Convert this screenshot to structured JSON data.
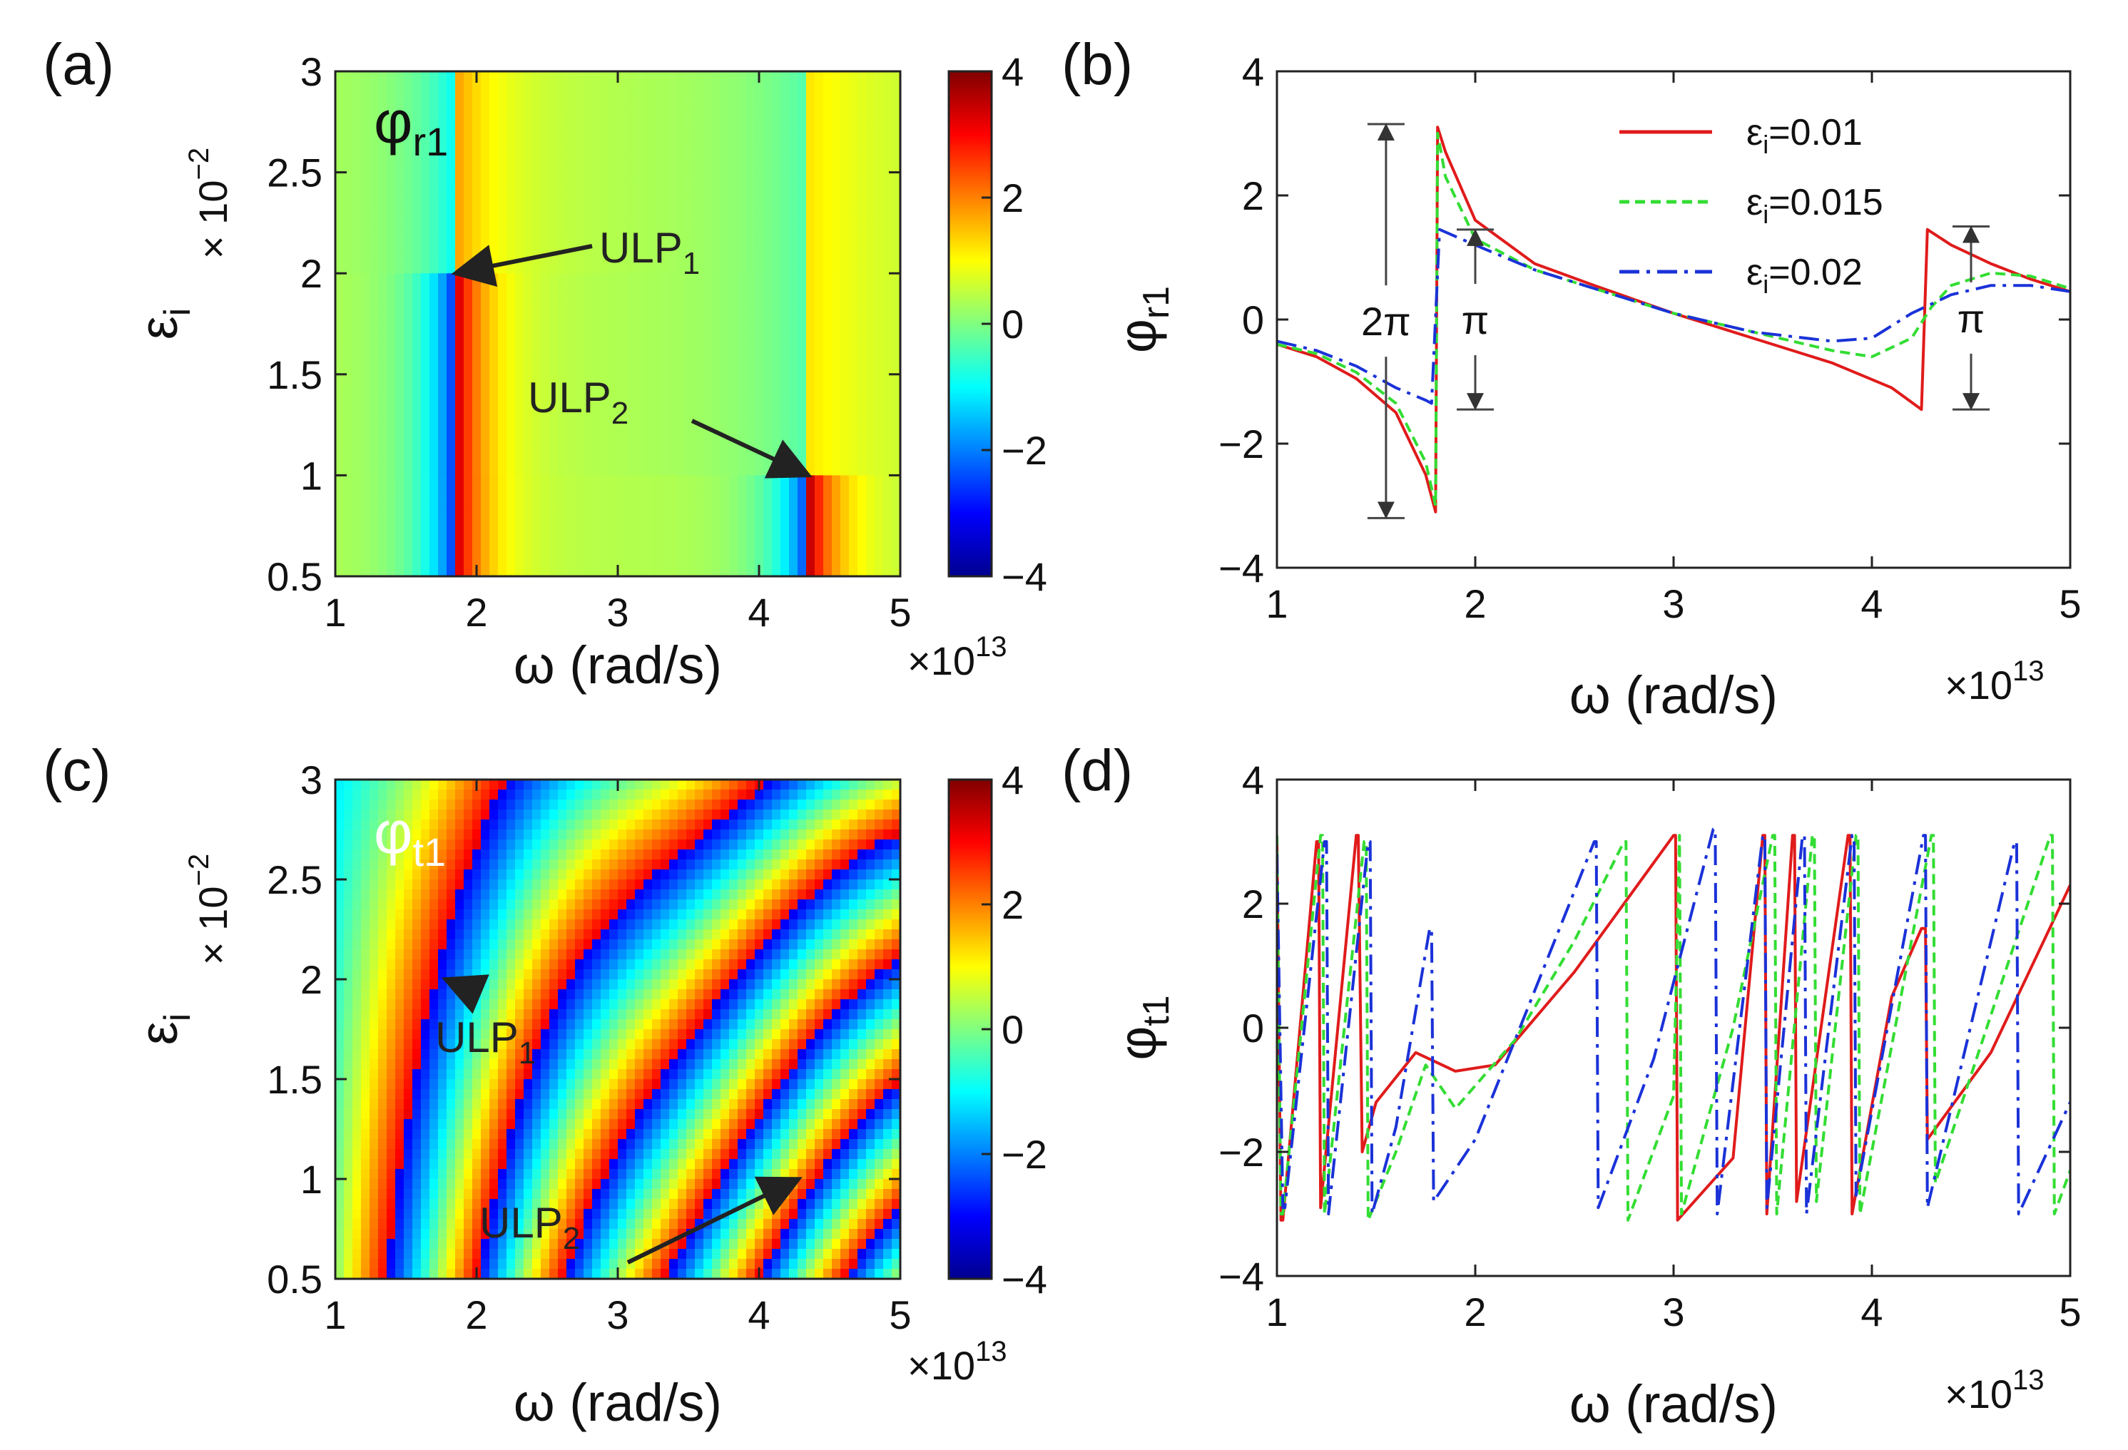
{
  "figure": {
    "x_multiplier": "×10",
    "x_multiplier_exp": "13",
    "y_multiplier": "× 10",
    "y_multiplier_exp": "−2"
  },
  "colormap": {
    "jet": [
      "#00008f",
      "#0000ff",
      "#0080ff",
      "#00ffff",
      "#80ff80",
      "#ffff00",
      "#ff8000",
      "#ff0000",
      "#800000"
    ],
    "background_phase_tint": "#8af088"
  },
  "chart_data": [
    {
      "id": "a",
      "type": "heatmap",
      "panel_label": "(a)",
      "title": "φ",
      "title_sub": "r1",
      "xlabel": "ω (rad/s)",
      "ylabel": "ε",
      "ylabel_sub": "i",
      "xlim": [
        1,
        5
      ],
      "ylim": [
        0.5,
        3
      ],
      "xticks": [
        "1",
        "2",
        "3",
        "4",
        "5"
      ],
      "yticks": [
        "0.5",
        "1",
        "1.5",
        "2",
        "2.5",
        "3"
      ],
      "colorbar": {
        "range": [
          -4,
          4
        ],
        "ticks": [
          "4",
          "2",
          "0",
          "−2",
          "−4"
        ]
      },
      "phase_jumps": [
        {
          "omega": 1.85,
          "eps_top": 2.0
        },
        {
          "omega": 4.35,
          "eps_top": 1.0
        }
      ],
      "annotations": [
        {
          "label": "ULP",
          "sub": "1",
          "point": [
            1.85,
            2.0
          ]
        },
        {
          "label": "ULP",
          "sub": "2",
          "point": [
            4.35,
            1.0
          ]
        }
      ]
    },
    {
      "id": "b",
      "type": "line",
      "panel_label": "(b)",
      "xlabel": "ω (rad/s)",
      "ylabel": "φ",
      "ylabel_sub": "r1",
      "xlim": [
        1,
        5
      ],
      "ylim": [
        -4,
        4
      ],
      "xticks": [
        "1",
        "2",
        "3",
        "4",
        "5"
      ],
      "yticks": [
        "4",
        "2",
        "0",
        "−2",
        "−4"
      ],
      "legend_position": "top-right",
      "series": [
        {
          "name": "εi=0.01",
          "label_eps": "ε",
          "label_sub": "i",
          "label_val": "=0.01",
          "color": "#e01b1b",
          "dash": "solid",
          "x": [
            1.0,
            1.2,
            1.4,
            1.6,
            1.75,
            1.8,
            1.81,
            1.85,
            2.0,
            2.3,
            2.6,
            3.0,
            3.4,
            3.8,
            4.1,
            4.25,
            4.28,
            4.4,
            4.6,
            4.8,
            5.0
          ],
          "y": [
            -0.4,
            -0.6,
            -0.95,
            -1.5,
            -2.5,
            -3.1,
            3.1,
            2.7,
            1.6,
            0.9,
            0.55,
            0.1,
            -0.3,
            -0.7,
            -1.1,
            -1.45,
            1.45,
            1.2,
            0.9,
            0.65,
            0.45
          ]
        },
        {
          "name": "εi=0.015",
          "label_eps": "ε",
          "label_sub": "i",
          "label_val": "=0.015",
          "color": "#33dd33",
          "dash": "dashed",
          "x": [
            1.0,
            1.2,
            1.4,
            1.6,
            1.75,
            1.8,
            1.81,
            1.85,
            2.0,
            2.3,
            2.6,
            3.0,
            3.4,
            3.8,
            4.0,
            4.2,
            4.3,
            4.4,
            4.6,
            4.8,
            5.0
          ],
          "y": [
            -0.4,
            -0.55,
            -0.85,
            -1.35,
            -2.3,
            -3.0,
            3.0,
            2.3,
            1.3,
            0.8,
            0.5,
            0.1,
            -0.2,
            -0.5,
            -0.6,
            -0.3,
            0.2,
            0.55,
            0.75,
            0.7,
            0.5
          ]
        },
        {
          "name": "εi=0.02",
          "label_eps": "ε",
          "label_sub": "i",
          "label_val": "=0.02",
          "color": "#1a32d8",
          "dash": "dashdot",
          "x": [
            1.0,
            1.2,
            1.4,
            1.6,
            1.75,
            1.78,
            1.82,
            2.0,
            2.3,
            2.6,
            3.0,
            3.4,
            3.8,
            4.0,
            4.2,
            4.4,
            4.6,
            4.8,
            5.0
          ],
          "y": [
            -0.35,
            -0.5,
            -0.75,
            -1.1,
            -1.3,
            -1.35,
            1.45,
            1.2,
            0.8,
            0.5,
            0.1,
            -0.2,
            -0.35,
            -0.3,
            0.1,
            0.4,
            0.55,
            0.55,
            0.45
          ]
        }
      ],
      "annotations": [
        {
          "label": "2π",
          "x": 1.55,
          "y_range": [
            -3.2,
            3.15
          ]
        },
        {
          "label": "π",
          "x": 2.0,
          "y_range": [
            -1.45,
            1.45
          ]
        },
        {
          "label": "π",
          "x": 4.5,
          "y_range": [
            -1.45,
            1.5
          ]
        }
      ]
    },
    {
      "id": "c",
      "type": "heatmap",
      "panel_label": "(c)",
      "title": "φ",
      "title_sub": "t1",
      "xlabel": "ω (rad/s)",
      "ylabel": "ε",
      "ylabel_sub": "i",
      "xlim": [
        1,
        5
      ],
      "ylim": [
        0.5,
        3
      ],
      "xticks": [
        "1",
        "2",
        "3",
        "4",
        "5"
      ],
      "yticks": [
        "0.5",
        "1",
        "1.5",
        "2",
        "2.5",
        "3"
      ],
      "colorbar": {
        "range": [
          -4,
          4
        ],
        "ticks": [
          "4",
          "2",
          "0",
          "−2",
          "−4"
        ]
      },
      "singular_points": [
        {
          "omega": 1.78,
          "eps": 2.0
        },
        {
          "omega": 4.28,
          "eps": 1.0
        }
      ],
      "annotations": [
        {
          "label": "ULP",
          "sub": "1",
          "point": [
            1.78,
            2.0
          ]
        },
        {
          "label": "ULP",
          "sub": "2",
          "point": [
            4.28,
            1.0
          ]
        }
      ]
    },
    {
      "id": "d",
      "type": "line",
      "panel_label": "(d)",
      "xlabel": "ω (rad/s)",
      "ylabel": "φ",
      "ylabel_sub": "t1",
      "xlim": [
        1,
        5
      ],
      "ylim": [
        -4,
        4
      ],
      "xticks": [
        "1",
        "2",
        "3",
        "4",
        "5"
      ],
      "yticks": [
        "4",
        "2",
        "0",
        "−2",
        "−4"
      ],
      "series": [
        {
          "name": "εi=0.01",
          "color": "#e01b1b",
          "dash": "solid",
          "x": [
            1.0,
            1.02,
            1.03,
            1.2,
            1.21,
            1.22,
            1.4,
            1.41,
            1.43,
            1.5,
            1.7,
            1.9,
            2.1,
            2.5,
            3.0,
            3.01,
            3.02,
            3.3,
            3.45,
            3.46,
            3.47,
            3.6,
            3.61,
            3.62,
            3.88,
            3.89,
            3.9,
            4.1,
            4.25,
            4.27,
            4.28,
            4.6,
            5.0
          ],
          "y": [
            3.0,
            -3.1,
            -3.1,
            3.0,
            3.0,
            -2.9,
            3.1,
            3.1,
            -2.0,
            -1.2,
            -0.4,
            -0.7,
            -0.6,
            0.9,
            3.1,
            3.1,
            -3.1,
            -2.1,
            3.1,
            3.1,
            -3.0,
            3.1,
            3.1,
            -2.8,
            3.1,
            3.1,
            -3.0,
            0.5,
            1.6,
            1.6,
            -1.8,
            -0.4,
            2.3
          ]
        },
        {
          "name": "εi=0.015",
          "color": "#33dd33",
          "dash": "dashed",
          "x": [
            1.0,
            1.02,
            1.03,
            1.22,
            1.23,
            1.24,
            1.44,
            1.45,
            1.46,
            1.6,
            1.75,
            1.9,
            2.2,
            2.5,
            2.75,
            2.76,
            2.77,
            3.0,
            3.03,
            3.04,
            3.3,
            3.5,
            3.51,
            3.52,
            3.7,
            3.71,
            3.72,
            3.92,
            3.93,
            3.94,
            4.3,
            4.31,
            4.32,
            4.9,
            4.91,
            4.92,
            5.0
          ],
          "y": [
            3.1,
            -3.0,
            -3.0,
            3.1,
            3.1,
            -3.0,
            3.0,
            3.0,
            -3.1,
            -2.0,
            -0.6,
            -1.3,
            -0.2,
            1.4,
            3.0,
            3.0,
            -3.1,
            -1.1,
            3.1,
            -3.0,
            0.0,
            3.1,
            3.1,
            -3.0,
            3.1,
            3.1,
            -2.8,
            3.1,
            3.1,
            -3.0,
            3.1,
            3.1,
            -2.5,
            3.1,
            3.1,
            -3.0,
            -2.3
          ]
        },
        {
          "name": "εi=0.02",
          "color": "#1a32d8",
          "dash": "dashdot",
          "x": [
            1.0,
            1.03,
            1.04,
            1.24,
            1.25,
            1.26,
            1.46,
            1.47,
            1.48,
            1.6,
            1.77,
            1.78,
            1.79,
            2.0,
            2.3,
            2.6,
            2.61,
            2.62,
            2.9,
            3.2,
            3.21,
            3.22,
            3.45,
            3.46,
            3.47,
            3.65,
            3.66,
            3.67,
            3.9,
            3.91,
            3.92,
            4.26,
            4.27,
            4.28,
            4.72,
            4.73,
            4.74,
            5.0
          ],
          "y": [
            2.8,
            -2.9,
            -2.9,
            3.0,
            3.0,
            -3.0,
            3.0,
            3.0,
            -3.0,
            -1.6,
            1.6,
            1.6,
            -2.8,
            -1.8,
            0.6,
            3.0,
            3.0,
            -2.9,
            -0.5,
            3.2,
            3.2,
            -3.0,
            3.1,
            3.1,
            -2.9,
            3.1,
            3.1,
            -3.0,
            3.1,
            3.1,
            -2.7,
            3.1,
            3.1,
            -2.9,
            3.0,
            3.0,
            -3.0,
            -1.2
          ]
        }
      ]
    }
  ]
}
